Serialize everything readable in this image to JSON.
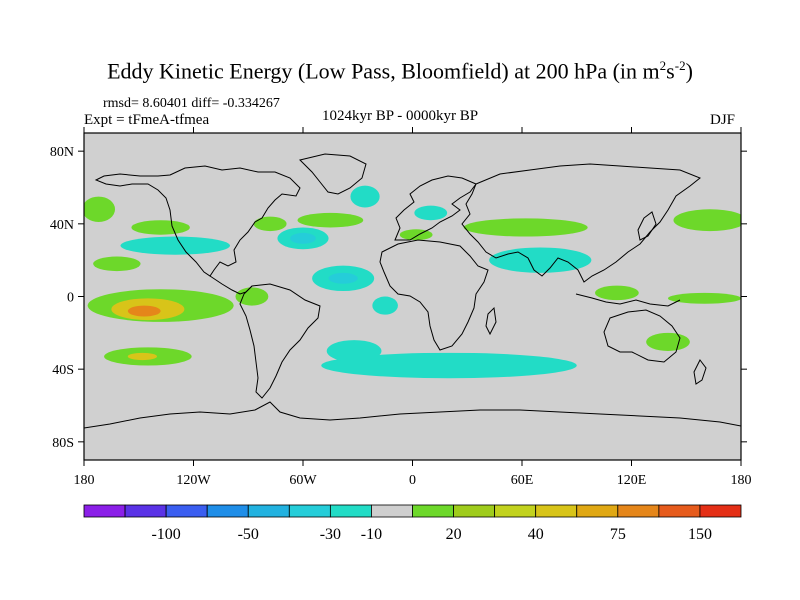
{
  "chart_data": {
    "type": "heatmap",
    "title": "Eddy Kinetic Energy (Low Pass, Bloomfield) at 200 hPa (in m",
    "title_sup1": "2",
    "title_mid": "s",
    "title_sup2": "-2",
    "title_end": ")",
    "stats": "rmsd= 8.60401 diff= -0.334267",
    "expt": "Expt = tFmeA-tfmea",
    "period": "1024kyr BP - 0000kyr BP",
    "season": "DJF",
    "x_ticks": [
      {
        "lon": -180,
        "label": "180"
      },
      {
        "lon": -120,
        "label": "120W"
      },
      {
        "lon": -60,
        "label": "60W"
      },
      {
        "lon": 0,
        "label": "0"
      },
      {
        "lon": 60,
        "label": "60E"
      },
      {
        "lon": 120,
        "label": "120E"
      },
      {
        "lon": 180,
        "label": "180"
      }
    ],
    "y_ticks": [
      {
        "lat": 80,
        "label": "80N"
      },
      {
        "lat": 40,
        "label": "40N"
      },
      {
        "lat": 0,
        "label": "0"
      },
      {
        "lat": -40,
        "label": "40S"
      },
      {
        "lat": -80,
        "label": "80S"
      }
    ],
    "xlim": [
      -180,
      180
    ],
    "ylim": [
      -90,
      90
    ],
    "colorbar": {
      "colors": [
        "#8b1fe8",
        "#5a32e6",
        "#3a5ef0",
        "#1f8ee8",
        "#22b2e0",
        "#25cdd9",
        "#22dcc6",
        "#cfcfcf",
        "#6dd82a",
        "#9fcc1c",
        "#c2d21e",
        "#d8c419",
        "#e0a814",
        "#e5861a",
        "#e65b1c",
        "#e42f16"
      ],
      "labels": [
        {
          "after_box": 2,
          "text": "-100"
        },
        {
          "after_box": 4,
          "text": "-50"
        },
        {
          "after_box": 6,
          "text": "-30"
        },
        {
          "after_box": 7,
          "text": "-10"
        },
        {
          "after_box": 9,
          "text": "20"
        },
        {
          "after_box": 11,
          "text": "40"
        },
        {
          "after_box": 13,
          "text": "75"
        },
        {
          "after_box": 15,
          "text": "150"
        }
      ]
    },
    "anomaly_regions": [
      {
        "name": "north-pacific-west",
        "level": 20,
        "lon": -172,
        "lat": 48,
        "dlon": 9,
        "dlat": 7
      },
      {
        "name": "north-pacific-central",
        "level": 20,
        "lon": -162,
        "lat": 18,
        "dlon": 13,
        "dlat": 4
      },
      {
        "name": "north-pacific-band",
        "level": -10,
        "lon": -130,
        "lat": 28,
        "dlon": 30,
        "dlat": 5
      },
      {
        "name": "north-america-west",
        "level": 20,
        "lon": -138,
        "lat": 38,
        "dlon": 16,
        "dlat": 4
      },
      {
        "name": "north-america-east",
        "level": 20,
        "lon": -78,
        "lat": 40,
        "dlon": 9,
        "dlat": 4
      },
      {
        "name": "north-atlantic-west",
        "level": -10,
        "lon": -60,
        "lat": 32,
        "dlon": 14,
        "dlat": 6
      },
      {
        "name": "north-atlantic-core",
        "level": -30,
        "lon": -60,
        "lat": 32,
        "dlon": 7,
        "dlat": 3
      },
      {
        "name": "north-atlantic-east",
        "level": 20,
        "lon": -45,
        "lat": 42,
        "dlon": 18,
        "dlat": 4
      },
      {
        "name": "north-atlantic-north",
        "level": -10,
        "lon": -26,
        "lat": 55,
        "dlon": 8,
        "dlat": 6
      },
      {
        "name": "europe-west",
        "level": -10,
        "lon": 10,
        "lat": 46,
        "dlon": 9,
        "dlat": 4
      },
      {
        "name": "europe-east",
        "level": 20,
        "lon": 2,
        "lat": 34,
        "dlon": 9,
        "dlat": 3
      },
      {
        "name": "eurasia-band",
        "level": 20,
        "lon": 62,
        "lat": 38,
        "dlon": 34,
        "dlat": 5
      },
      {
        "name": "mideast-band",
        "level": -10,
        "lon": 70,
        "lat": 20,
        "dlon": 28,
        "dlat": 7
      },
      {
        "name": "north-pacific-east-asia",
        "level": 20,
        "lon": 163,
        "lat": 42,
        "dlon": 20,
        "dlat": 6
      },
      {
        "name": "tropical-atlantic",
        "level": -10,
        "lon": -38,
        "lat": 10,
        "dlon": 17,
        "dlat": 7
      },
      {
        "name": "tropical-atlantic-core",
        "level": -30,
        "lon": -38,
        "lat": 10,
        "dlon": 8,
        "dlat": 3
      },
      {
        "name": "africa-west",
        "level": -10,
        "lon": -15,
        "lat": -5,
        "dlon": 7,
        "dlat": 5
      },
      {
        "name": "east-pacific-band",
        "level": 20,
        "lon": -138,
        "lat": -5,
        "dlon": 40,
        "dlat": 9
      },
      {
        "name": "east-pacific-yellow",
        "level": 40,
        "lon": -145,
        "lat": -7,
        "dlon": 20,
        "dlat": 6
      },
      {
        "name": "east-pacific-orange",
        "level": 75,
        "lon": -147,
        "lat": -8,
        "dlon": 9,
        "dlat": 3
      },
      {
        "name": "south-america-west",
        "level": 20,
        "lon": -88,
        "lat": 0,
        "dlon": 9,
        "dlat": 5
      },
      {
        "name": "south-pacific",
        "level": 20,
        "lon": -145,
        "lat": -33,
        "dlon": 24,
        "dlat": 5
      },
      {
        "name": "south-pacific-core",
        "level": 40,
        "lon": -148,
        "lat": -33,
        "dlon": 8,
        "dlat": 2
      },
      {
        "name": "south-atlantic-band",
        "level": -10,
        "lon": 20,
        "lat": -38,
        "dlon": 70,
        "dlat": 7
      },
      {
        "name": "south-atlantic-west",
        "level": -10,
        "lon": -32,
        "lat": -30,
        "dlon": 15,
        "dlat": 6
      },
      {
        "name": "australia-south",
        "level": 20,
        "lon": 140,
        "lat": -25,
        "dlon": 12,
        "dlat": 5
      },
      {
        "name": "indo-pacific-equator",
        "level": 20,
        "lon": 160,
        "lat": -1,
        "dlon": 20,
        "dlat": 3
      },
      {
        "name": "maritime-continent",
        "level": 20,
        "lon": 112,
        "lat": 2,
        "dlon": 12,
        "dlat": 4
      }
    ]
  }
}
